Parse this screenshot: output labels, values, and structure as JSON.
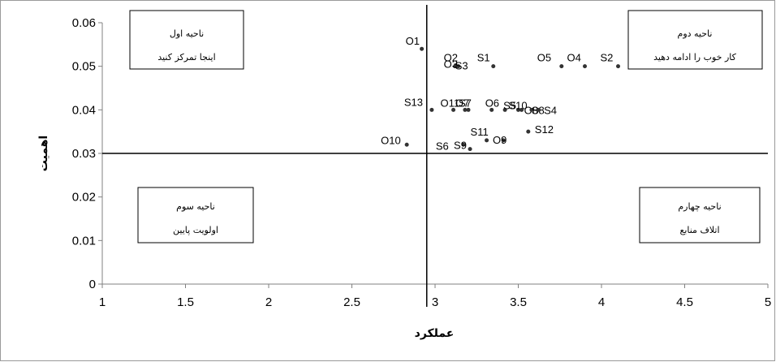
{
  "chart_data": {
    "type": "scatter",
    "xlabel": "عملکرد",
    "ylabel": "اهمیت",
    "xlim": [
      1,
      5
    ],
    "ylim": [
      0,
      0.06
    ],
    "x_ticks": [
      "1",
      "1.5",
      "2",
      "2.5",
      "3",
      "3.5",
      "4",
      "4.5",
      "5"
    ],
    "y_ticks": [
      "0",
      "0.01",
      "0.02",
      "0.03",
      "0.04",
      "0.05",
      "0.06"
    ],
    "divider_x": 2.95,
    "divider_y": 0.03,
    "grid": false,
    "quadrants": [
      {
        "title": "ناحیه اول",
        "text": "اینجا  تمرکز کنید"
      },
      {
        "title": "ناحیه دوم",
        "text": "کار خوب را ادامه دهید"
      },
      {
        "title": "ناحیه سوم",
        "text": "اولویت پایین"
      },
      {
        "title": "ناحیه چهارم",
        "text": "اتلاف منابع"
      }
    ],
    "points": [
      {
        "label": "O1",
        "x": 2.92,
        "y": 0.054
      },
      {
        "label": "O2",
        "x": 3.13,
        "y": 0.05
      },
      {
        "label": "O3",
        "x": 3.12,
        "y": 0.05
      },
      {
        "label": "S3",
        "x": 3.14,
        "y": 0.05
      },
      {
        "label": "S1",
        "x": 3.35,
        "y": 0.05
      },
      {
        "label": "O5",
        "x": 3.76,
        "y": 0.05
      },
      {
        "label": "O4",
        "x": 3.9,
        "y": 0.05
      },
      {
        "label": "S2",
        "x": 4.1,
        "y": 0.05
      },
      {
        "label": "S13",
        "x": 2.98,
        "y": 0.04
      },
      {
        "label": "O11",
        "x": 3.11,
        "y": 0.04
      },
      {
        "label": "O7",
        "x": 3.18,
        "y": 0.04
      },
      {
        "label": "S7",
        "x": 3.2,
        "y": 0.04
      },
      {
        "label": "O6",
        "x": 3.34,
        "y": 0.04
      },
      {
        "label": "S5",
        "x": 3.42,
        "y": 0.04
      },
      {
        "label": "S10",
        "x": 3.5,
        "y": 0.04
      },
      {
        "label": "O8",
        "x": 3.52,
        "y": 0.04
      },
      {
        "label": "S8",
        "x": 3.58,
        "y": 0.04
      },
      {
        "label": "S4",
        "x": 3.62,
        "y": 0.04
      },
      {
        "label": "O10",
        "x": 2.83,
        "y": 0.032
      },
      {
        "label": "S6",
        "x": 3.17,
        "y": 0.032
      },
      {
        "label": "S9",
        "x": 3.21,
        "y": 0.031
      },
      {
        "label": "S11",
        "x": 3.31,
        "y": 0.033
      },
      {
        "label": "O9",
        "x": 3.41,
        "y": 0.033
      },
      {
        "label": "S12",
        "x": 3.56,
        "y": 0.035
      }
    ]
  }
}
